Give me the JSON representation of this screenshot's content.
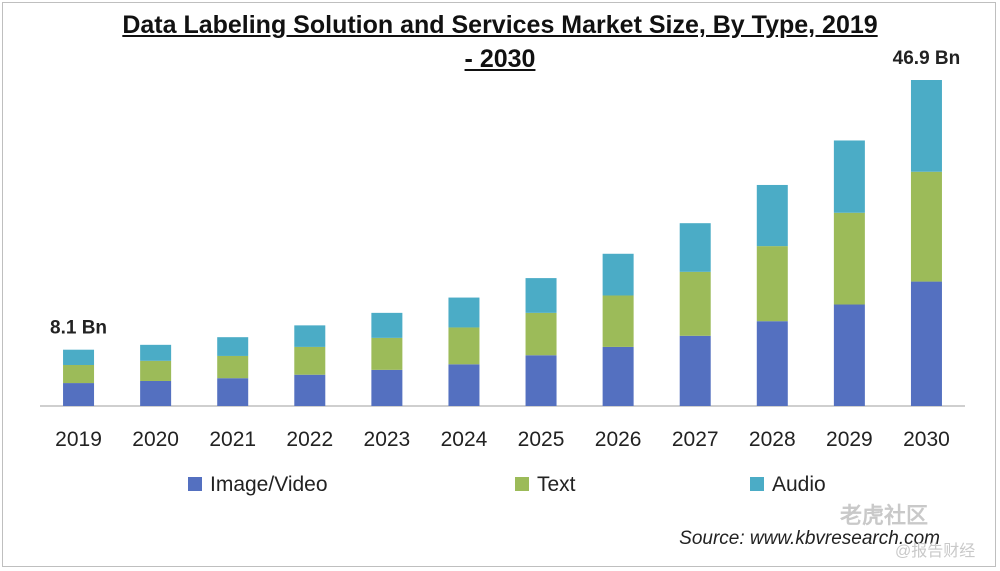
{
  "chart_data": {
    "type": "bar",
    "stacked": true,
    "title": "Data Labeling Solution and Services Market Size, By Type, 2019 - 2030",
    "title_line1": "Data Labeling Solution and Services Market Size, By Type, 2019",
    "title_line2": "- 2030",
    "categories": [
      "2019",
      "2020",
      "2021",
      "2022",
      "2023",
      "2024",
      "2025",
      "2026",
      "2027",
      "2028",
      "2029",
      "2030"
    ],
    "series": [
      {
        "name": "Image/Video",
        "color": "#5470c0",
        "values": [
          3.3,
          3.6,
          4.0,
          4.5,
          5.2,
          6.0,
          7.3,
          8.5,
          10.1,
          12.2,
          14.6,
          17.9
        ]
      },
      {
        "name": "Text",
        "color": "#9cbb59",
        "values": [
          2.6,
          2.9,
          3.2,
          4.0,
          4.6,
          5.3,
          6.1,
          7.4,
          9.2,
          10.8,
          13.2,
          15.8
        ]
      },
      {
        "name": "Audio",
        "color": "#4bacc6",
        "values": [
          2.2,
          2.3,
          2.7,
          3.1,
          3.6,
          4.3,
          5.0,
          6.0,
          7.0,
          8.8,
          10.4,
          13.2
        ]
      }
    ],
    "annotations": [
      {
        "category": "2019",
        "text": "8.1 Bn"
      },
      {
        "category": "2030",
        "text": "46.9 Bn"
      }
    ],
    "ylim": [
      0,
      50
    ],
    "legend": "bottom",
    "grid": false
  },
  "source_text": "Source: www.kbvresearch.com",
  "watermark": {
    "main": "老虎社区",
    "sub": "@报告财经"
  }
}
